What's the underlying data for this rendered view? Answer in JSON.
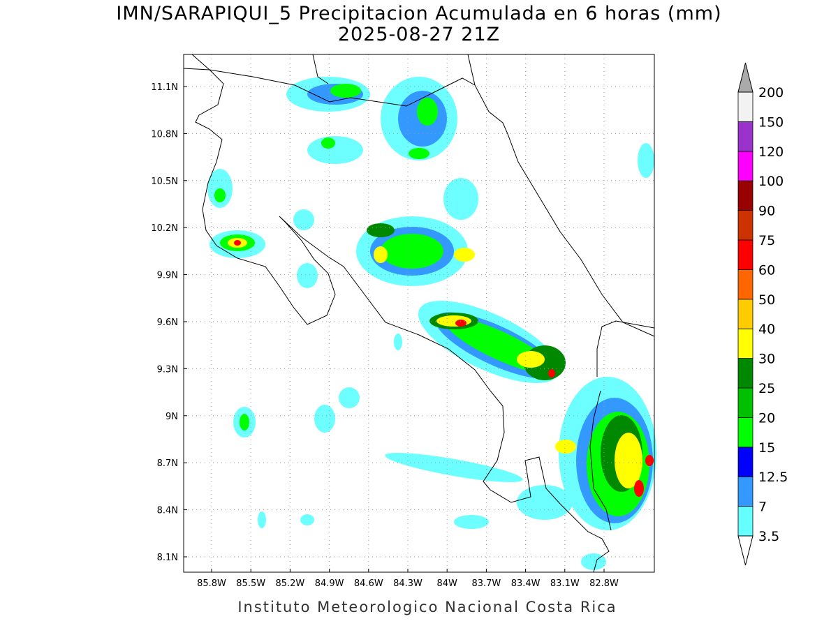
{
  "header": {
    "title": "IMN/SARAPIQUI_5 Precipitacion Acumulada en 6 horas (mm)",
    "subtitle": "2025-08-27 21Z"
  },
  "map": {
    "lat_labels": [
      "11.1N",
      "10.8N",
      "10.5N",
      "10.2N",
      "9.9N",
      "9.6N",
      "9.3N",
      "9N",
      "8.7N",
      "8.4N",
      "8.1N"
    ],
    "lon_labels": [
      "85.8W",
      "85.5W",
      "85.2W",
      "84.9W",
      "84.6W",
      "84.3W",
      "84W",
      "83.7W",
      "83.4W",
      "83.1W",
      "82.8W"
    ]
  },
  "colorbar": {
    "levels": [
      "3.5",
      "7",
      "12.5",
      "15",
      "20",
      "25",
      "30",
      "40",
      "50",
      "60",
      "75",
      "90",
      "100",
      "120",
      "150",
      "200"
    ],
    "colors": [
      "#66ffff",
      "#3399ff",
      "#0000ff",
      "#00ff00",
      "#00c000",
      "#008800",
      "#ffff00",
      "#ffcc00",
      "#ff6600",
      "#ff0000",
      "#cc3300",
      "#990000",
      "#ff00ff",
      "#9933cc",
      "#f2f2f2"
    ],
    "over_color": "#aaaaaa",
    "under_color": "#ffffff"
  },
  "footer": "Instituto Meteorologico Nacional Costa Rica"
}
